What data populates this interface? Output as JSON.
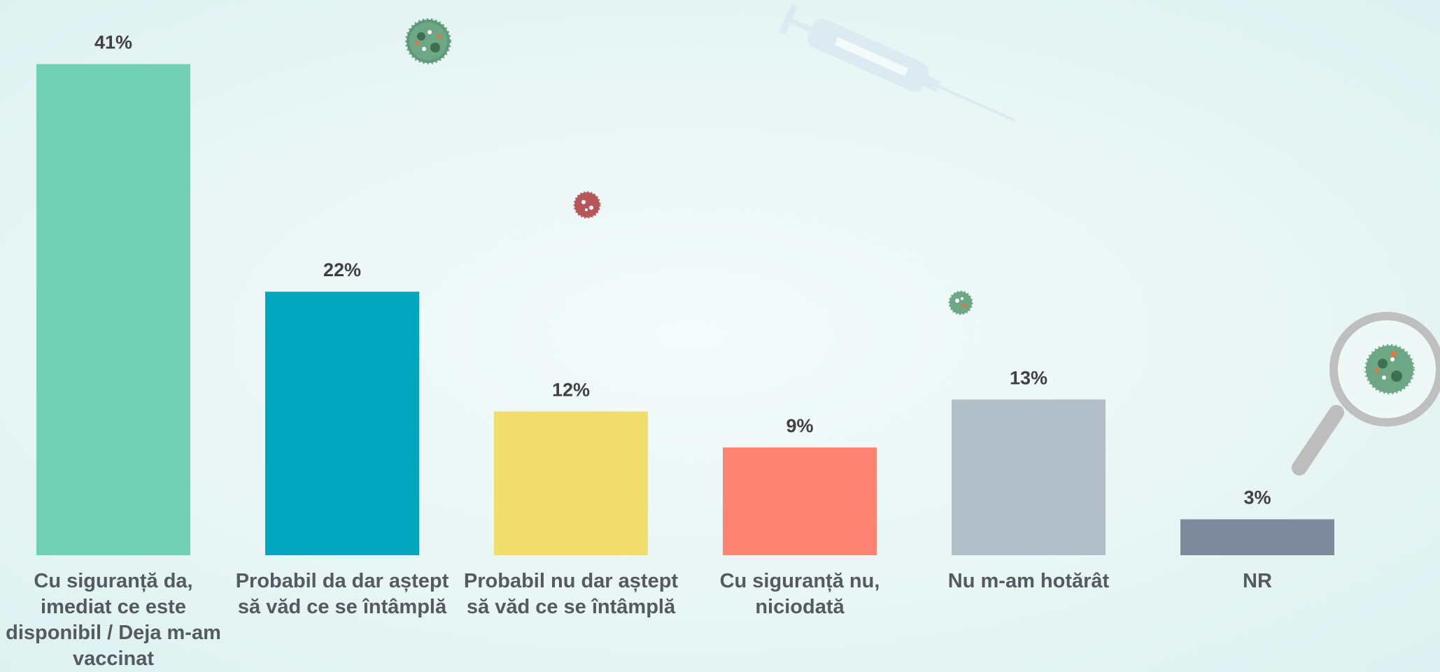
{
  "chart_data": {
    "type": "bar",
    "categories": [
      "Cu siguranță da, imediat ce este disponibil / Deja m-am vaccinat",
      "Probabil da dar aștept să văd ce se întâmplă",
      "Probabil nu dar aștept să văd  ce se întâmplă",
      "Cu siguranță nu, niciodată",
      "Nu m-am hotărât",
      "NR"
    ],
    "values": [
      41,
      22,
      12,
      9,
      13,
      3
    ],
    "value_labels": [
      "41%",
      "22%",
      "12%",
      "9%",
      "13%",
      "3%"
    ],
    "colors": [
      "#71cfb3",
      "#00a6bd",
      "#f0dd6e",
      "#fe8373",
      "#b3bfc8",
      "#7e8a9c"
    ]
  }
}
